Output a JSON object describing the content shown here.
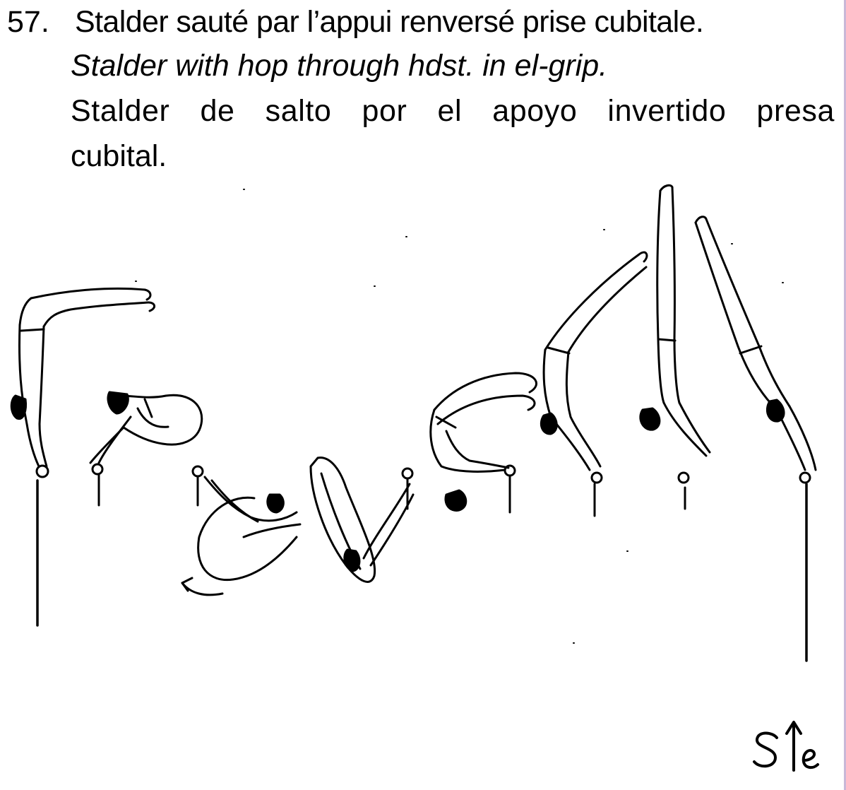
{
  "heading": {
    "number": "57.",
    "french": "Stalder sauté par l’appui renversé prise cubitale.",
    "english": "Stalder with hop through hdst. in el-grip.",
    "spanish_line1": "Stalder de salto por el apoyo invertido presa",
    "spanish_line2": "cubital."
  },
  "figure": {
    "frames": 10
  },
  "symbol": {
    "icon": "stalder-hop-symbol"
  },
  "colors": {
    "ink": "#000000",
    "background": "#ffffff",
    "border": "#c9b8d8"
  }
}
